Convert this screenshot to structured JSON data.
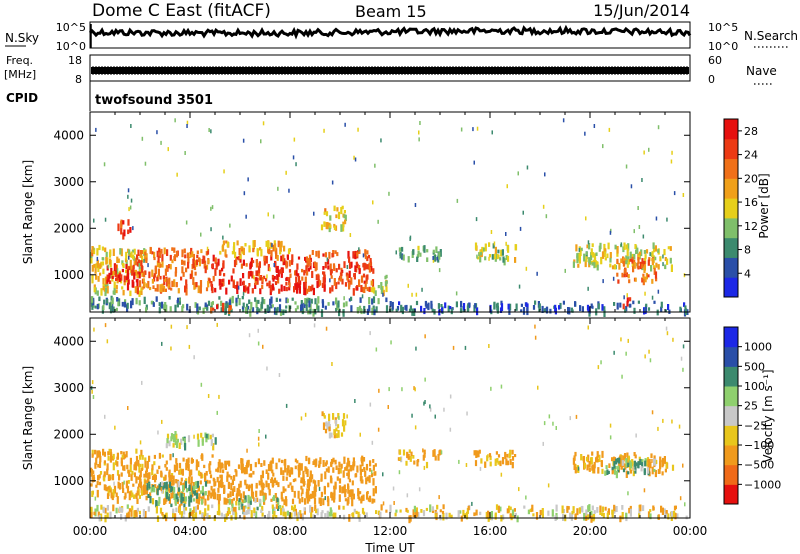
{
  "header": {
    "station": "Dome C East (fitACF)",
    "beam": "Beam 15",
    "date": "15/Jun/2014"
  },
  "nsky_panel": {
    "left_label": "N.Sky",
    "left_ticks": [
      "10^5",
      "10^0"
    ],
    "right_label": "N.Search",
    "right_ticks": [
      "10^5",
      "10^0"
    ]
  },
  "freq_panel": {
    "left_label_top": "Freq.",
    "left_label_unit": "[MHz]",
    "left_ticks": [
      "18",
      "8"
    ],
    "right_label": "Nave",
    "right_ticks": [
      "60",
      "0"
    ]
  },
  "cpid": {
    "label": "CPID",
    "value": "twofsound 3501"
  },
  "colors": {
    "power_scale": [
      "#1c28e6",
      "#2a4fa8",
      "#3c8a6e",
      "#7fbf6a",
      "#e6cf1a",
      "#f0a01a",
      "#f07018",
      "#ec3a14",
      "#e6100e"
    ],
    "velocity_scale": [
      "#1c28e6",
      "#2a4fa8",
      "#3c8a6e",
      "#8fd06e",
      "#c8c8c8",
      "#e8c61c",
      "#f09a1c",
      "#f06a18",
      "#e6100e"
    ]
  },
  "chart_data": [
    {
      "type": "heatmap",
      "quantity": "power",
      "ylabel": "Slant Range [km]",
      "yticks": [
        1000,
        2000,
        3000,
        4000
      ],
      "ylim": [
        200,
        4500
      ],
      "xlim_hours": [
        0,
        24
      ],
      "colorbar_label": "Power [dB]",
      "colorbar_ticks": [
        "4",
        "8",
        "12",
        "16",
        "20",
        "24",
        "28"
      ],
      "blobs": [
        {
          "t0": 0.0,
          "t1": 2.2,
          "r0": 650,
          "r1": 1650,
          "value": 16
        },
        {
          "t0": 0.6,
          "t1": 2.0,
          "r0": 800,
          "r1": 1250,
          "value": 27
        },
        {
          "t0": 1.8,
          "t1": 4.8,
          "r0": 700,
          "r1": 1600,
          "value": 22
        },
        {
          "t0": 4.8,
          "t1": 8.8,
          "r0": 700,
          "r1": 1450,
          "value": 26
        },
        {
          "t0": 5.0,
          "t1": 8.0,
          "r0": 1400,
          "r1": 1750,
          "value": 18
        },
        {
          "t0": 8.6,
          "t1": 11.3,
          "r0": 700,
          "r1": 1550,
          "value": 24
        },
        {
          "t0": 9.2,
          "t1": 10.2,
          "r0": 2000,
          "r1": 2500,
          "value": 16
        },
        {
          "t0": 11.2,
          "t1": 11.9,
          "r0": 600,
          "r1": 1000,
          "value": 14
        },
        {
          "t0": 12.3,
          "t1": 14.0,
          "r0": 1350,
          "r1": 1650,
          "value": 10
        },
        {
          "t0": 15.3,
          "t1": 17.0,
          "r0": 1350,
          "r1": 1700,
          "value": 13
        },
        {
          "t0": 19.3,
          "t1": 23.3,
          "r0": 1200,
          "r1": 1700,
          "value": 14
        },
        {
          "t0": 21.0,
          "t1": 22.6,
          "r0": 900,
          "r1": 1400,
          "value": 22
        },
        {
          "t0": 0.0,
          "t1": 12.0,
          "r0": 250,
          "r1": 550,
          "value": 9
        },
        {
          "t0": 12.0,
          "t1": 24.0,
          "r0": 250,
          "r1": 450,
          "value": 6
        },
        {
          "t0": 1.0,
          "t1": 1.6,
          "r0": 1900,
          "r1": 2200,
          "value": 25
        },
        {
          "t0": 4.8,
          "t1": 5.6,
          "r0": 250,
          "r1": 450,
          "value": 25
        },
        {
          "t0": 21.3,
          "t1": 21.6,
          "r0": 300,
          "r1": 550,
          "value": 25
        }
      ]
    },
    {
      "type": "heatmap",
      "quantity": "velocity",
      "ylabel": "Slant Range [km]",
      "yticks": [
        1000,
        2000,
        3000,
        4000
      ],
      "ylim": [
        200,
        4500
      ],
      "xlim_hours": [
        0,
        24
      ],
      "xticks": [
        "00:00",
        "04:00",
        "08:00",
        "12:00",
        "16:00",
        "20:00",
        "00:00"
      ],
      "xlabel": "Time UT",
      "colorbar_label": "Velocity [m s⁻¹]",
      "colorbar_ticks": [
        "1000",
        "500",
        "100",
        "25",
        "−25",
        "−100",
        "−500",
        "−1000"
      ],
      "blobs": [
        {
          "t0": 0.0,
          "t1": 2.2,
          "r0": 650,
          "r1": 1700,
          "value": -150
        },
        {
          "t0": 1.8,
          "t1": 5.0,
          "r0": 600,
          "r1": 1600,
          "value": -180
        },
        {
          "t0": 2.2,
          "t1": 4.6,
          "r0": 500,
          "r1": 1000,
          "value": 120
        },
        {
          "t0": 5.0,
          "t1": 8.8,
          "r0": 600,
          "r1": 1500,
          "value": -200
        },
        {
          "t0": 5.5,
          "t1": 7.5,
          "r0": 400,
          "r1": 700,
          "value": 60
        },
        {
          "t0": 8.6,
          "t1": 11.4,
          "r0": 600,
          "r1": 1550,
          "value": -220
        },
        {
          "t0": 9.2,
          "t1": 10.2,
          "r0": 2000,
          "r1": 2500,
          "value": -80
        },
        {
          "t0": 12.3,
          "t1": 14.0,
          "r0": 1400,
          "r1": 1700,
          "value": -120
        },
        {
          "t0": 15.3,
          "t1": 17.0,
          "r0": 1400,
          "r1": 1700,
          "value": -140
        },
        {
          "t0": 19.3,
          "t1": 23.3,
          "r0": 1200,
          "r1": 1650,
          "value": -130
        },
        {
          "t0": 20.5,
          "t1": 23.0,
          "r0": 1200,
          "r1": 1500,
          "value": 90
        },
        {
          "t0": 0.0,
          "t1": 24.0,
          "r0": 250,
          "r1": 500,
          "value": -60
        },
        {
          "t0": 3.0,
          "t1": 5.0,
          "r0": 1800,
          "r1": 2100,
          "value": 30
        }
      ]
    }
  ]
}
